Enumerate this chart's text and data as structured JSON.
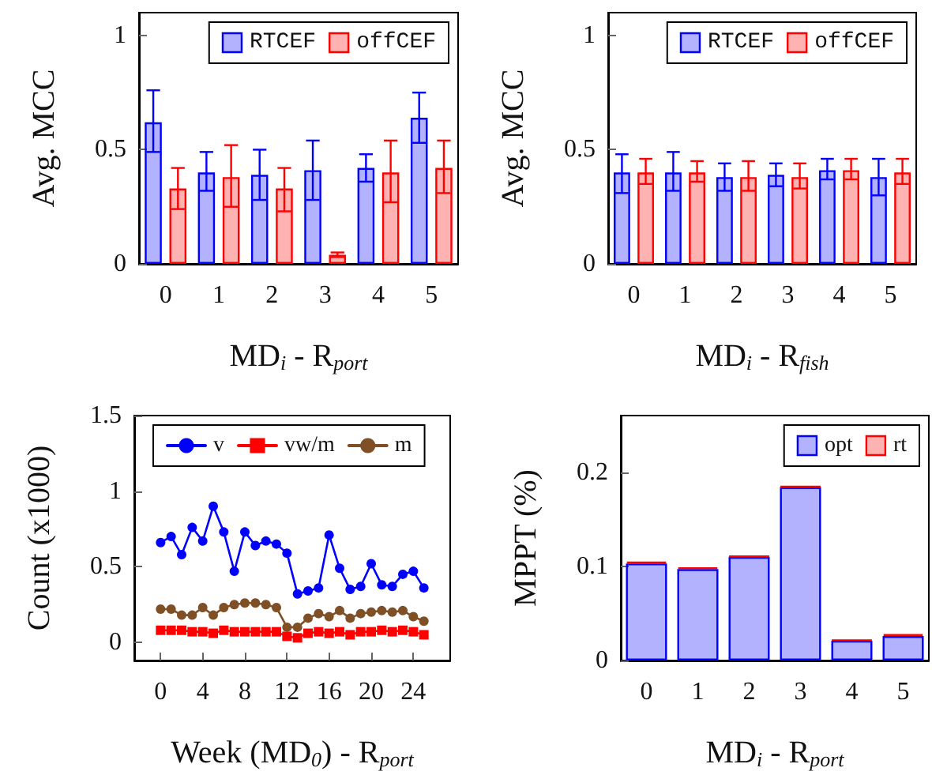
{
  "chart_data": [
    {
      "type": "bar",
      "ylabel": "Avg. MCC",
      "xlabel": "MD$_{i}$ - R$_{port}$",
      "categories": [
        "0",
        "1",
        "2",
        "3",
        "4",
        "5"
      ],
      "ylim": [
        0,
        1.1
      ],
      "yticks": [
        0,
        0.5,
        1
      ],
      "legend": "top right",
      "grid": false,
      "series": [
        {
          "name": "RTCEF",
          "color": "#0000ff",
          "values": [
            0.62,
            0.4,
            0.39,
            0.41,
            0.42,
            0.64
          ],
          "errors": [
            [
              0.49,
              0.76
            ],
            [
              0.32,
              0.49
            ],
            [
              0.28,
              0.5
            ],
            [
              0.28,
              0.54
            ],
            [
              0.36,
              0.48
            ],
            [
              0.53,
              0.75
            ]
          ]
        },
        {
          "name": "offCEF",
          "color": "#ff0000",
          "values": [
            0.33,
            0.38,
            0.33,
            0.04,
            0.4,
            0.42
          ],
          "errors": [
            [
              0.24,
              0.42
            ],
            [
              0.25,
              0.52
            ],
            [
              0.23,
              0.42
            ],
            [
              0.03,
              0.05
            ],
            [
              0.27,
              0.54
            ],
            [
              0.31,
              0.54
            ]
          ]
        }
      ]
    },
    {
      "type": "bar",
      "ylabel": "Avg. MCC",
      "xlabel": "MD$_{i}$ - R$_{fish}$",
      "categories": [
        "0",
        "1",
        "2",
        "3",
        "4",
        "5"
      ],
      "ylim": [
        0,
        1.1
      ],
      "yticks": [
        0,
        0.5,
        1
      ],
      "legend": "top right",
      "grid": false,
      "series": [
        {
          "name": "RTCEF",
          "color": "#0000ff",
          "values": [
            0.4,
            0.4,
            0.38,
            0.39,
            0.41,
            0.38
          ],
          "errors": [
            [
              0.31,
              0.48
            ],
            [
              0.32,
              0.49
            ],
            [
              0.32,
              0.44
            ],
            [
              0.34,
              0.44
            ],
            [
              0.37,
              0.46
            ],
            [
              0.3,
              0.46
            ]
          ]
        },
        {
          "name": "offCEF",
          "color": "#ff0000",
          "values": [
            0.4,
            0.4,
            0.38,
            0.38,
            0.41,
            0.4
          ],
          "errors": [
            [
              0.35,
              0.46
            ],
            [
              0.36,
              0.45
            ],
            [
              0.32,
              0.45
            ],
            [
              0.33,
              0.44
            ],
            [
              0.37,
              0.46
            ],
            [
              0.35,
              0.46
            ]
          ]
        }
      ]
    },
    {
      "type": "line",
      "ylabel": "Count (x1000)",
      "xlabel": "Week (MD$_{0}$) - R$_{port}$",
      "x": [
        0,
        1,
        2,
        3,
        4,
        5,
        6,
        7,
        8,
        9,
        10,
        11,
        12,
        13,
        14,
        15,
        16,
        17,
        18,
        19,
        20,
        21,
        22,
        23,
        24,
        25
      ],
      "xlim": [
        -2.5,
        27.5
      ],
      "xticks": [
        0,
        4,
        8,
        12,
        16,
        20,
        24
      ],
      "ylim": [
        -0.12,
        1.5
      ],
      "yticks": [
        0,
        0.5,
        1,
        1.5
      ],
      "legend": "top",
      "grid": false,
      "line_style": "solid",
      "series": [
        {
          "name": "v",
          "color": "#0000ff",
          "marker": "circle",
          "values": [
            0.66,
            0.7,
            0.58,
            0.76,
            0.67,
            0.9,
            0.73,
            0.47,
            0.73,
            0.64,
            0.67,
            0.65,
            0.59,
            0.32,
            0.34,
            0.36,
            0.71,
            0.49,
            0.35,
            0.37,
            0.52,
            0.38,
            0.37,
            0.45,
            0.47,
            0.36
          ]
        },
        {
          "name": "vw/m",
          "color": "#ff0000",
          "marker": "square",
          "values": [
            0.08,
            0.08,
            0.08,
            0.07,
            0.07,
            0.06,
            0.08,
            0.07,
            0.07,
            0.07,
            0.07,
            0.07,
            0.04,
            0.03,
            0.06,
            0.07,
            0.06,
            0.07,
            0.05,
            0.07,
            0.07,
            0.08,
            0.07,
            0.08,
            0.07,
            0.05
          ]
        },
        {
          "name": "m",
          "color": "#7f4f26",
          "marker": "circle",
          "values": [
            0.22,
            0.22,
            0.18,
            0.18,
            0.23,
            0.18,
            0.23,
            0.25,
            0.26,
            0.26,
            0.25,
            0.23,
            0.1,
            0.1,
            0.16,
            0.19,
            0.17,
            0.21,
            0.16,
            0.19,
            0.2,
            0.21,
            0.2,
            0.21,
            0.17,
            0.14
          ]
        }
      ]
    },
    {
      "type": "bar",
      "stacked": true,
      "ylabel": "MPPT (%)",
      "xlabel": "MD$_{i}$ - R$_{port}$",
      "categories": [
        "0",
        "1",
        "2",
        "3",
        "4",
        "5"
      ],
      "ylim": [
        0,
        0.26
      ],
      "yticks": [
        0,
        0.1,
        0.2
      ],
      "legend": "top right",
      "grid": false,
      "series": [
        {
          "name": "opt",
          "color": "#0000ff",
          "values": [
            0.103,
            0.097,
            0.11,
            0.184,
            0.021,
            0.026
          ]
        },
        {
          "name": "rt",
          "color": "#ff0000",
          "values": [
            0.002,
            0.002,
            0.001,
            0.001,
            0.001,
            0.002
          ]
        }
      ]
    }
  ]
}
